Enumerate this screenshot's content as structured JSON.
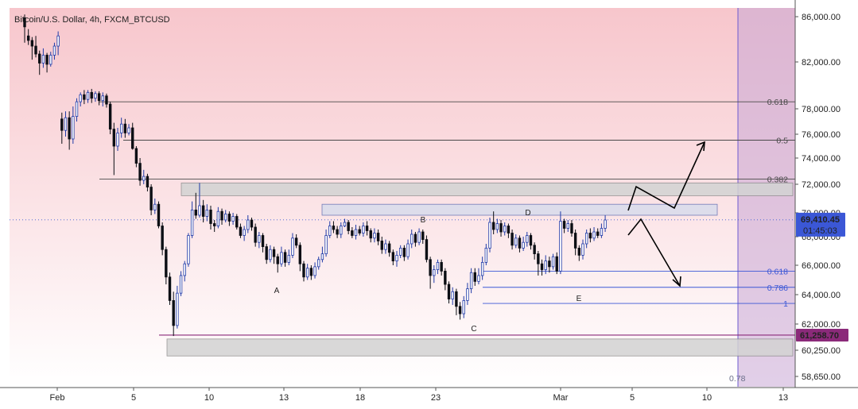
{
  "title": "Bitcoin/U.S. Dollar, 4h, FXCM_BTCUSD",
  "colors": {
    "up": "#1f3aa8",
    "down": "#0b0e14",
    "bgTop": "#f7c6cc",
    "bgBottom": "#ffffff",
    "fib": "#4a4a4a",
    "fibBlue": "#3b57d6",
    "support": "#8b2a7a",
    "current": "#3b57d6",
    "zone": "#9a9a9a",
    "band": "#c9a7d6"
  },
  "chart_data": {
    "type": "candlestick",
    "symbol": "BTCUSD",
    "timeframe": "4h",
    "ylim": [
      57800,
      87000
    ],
    "y_ticks": [
      "86,000.00",
      "82,000.00",
      "78,000.00",
      "76,000.00",
      "74,000.00",
      "72,000.00",
      "70,000.00",
      "68,000.00",
      "66,000.00",
      "64,000.00",
      "62,000.00",
      "60,250.00",
      "58,650.00"
    ],
    "x_ticks": [
      "Feb",
      "5",
      "10",
      "13",
      "18",
      "23",
      "Mar",
      "5",
      "10",
      "13"
    ],
    "x_start_date": "Feb 1",
    "candles": [
      [
        85900,
        85100,
        86200,
        83700
      ],
      [
        84300,
        83900,
        84900,
        83500
      ],
      [
        83900,
        83400,
        84200,
        82200
      ],
      [
        83400,
        82700,
        84300,
        82400
      ],
      [
        82700,
        81900,
        83000,
        80900
      ],
      [
        81900,
        82600,
        83200,
        81500
      ],
      [
        82600,
        81800,
        82800,
        81100
      ],
      [
        81800,
        82600,
        82900,
        81600
      ],
      [
        82600,
        83400,
        83700,
        82200
      ],
      [
        83400,
        84300,
        84700,
        82600
      ],
      [
        77200,
        76300,
        77700,
        75200
      ],
      [
        76300,
        77300,
        77800,
        75800
      ],
      [
        77300,
        75600,
        77800,
        74700
      ],
      [
        75600,
        77400,
        78200,
        75200
      ],
      [
        77400,
        78600,
        78900,
        77000
      ],
      [
        78600,
        79200,
        79400,
        78200
      ],
      [
        79200,
        78800,
        79600,
        78400
      ],
      [
        78800,
        79400,
        79600,
        78500
      ],
      [
        79400,
        78900,
        79700,
        78500
      ],
      [
        78900,
        79300,
        79500,
        78600
      ],
      [
        79300,
        78700,
        79500,
        78300
      ],
      [
        78700,
        79100,
        79400,
        78200
      ],
      [
        79100,
        78400,
        79300,
        78100
      ],
      [
        78400,
        76400,
        78600,
        76000
      ],
      [
        76400,
        75000,
        76900,
        72700
      ],
      [
        75000,
        76100,
        76500,
        74600
      ],
      [
        76100,
        76800,
        77300,
        75700
      ],
      [
        76800,
        76100,
        77200,
        75700
      ],
      [
        76100,
        76500,
        76800,
        75900
      ],
      [
        76500,
        74800,
        76900,
        74700
      ],
      [
        74800,
        73600,
        75000,
        73300
      ],
      [
        73600,
        72300,
        74000,
        71900
      ],
      [
        72300,
        72600,
        73100,
        72000
      ],
      [
        72600,
        71800,
        72800,
        71500
      ],
      [
        71800,
        70200,
        72000,
        69800
      ],
      [
        70200,
        70600,
        71000,
        69900
      ],
      [
        70600,
        68900,
        70800,
        68700
      ],
      [
        68900,
        67100,
        69200,
        66700
      ],
      [
        67100,
        65200,
        67300,
        64700
      ],
      [
        65200,
        63600,
        65500,
        63300
      ],
      [
        63600,
        61900,
        64200,
        61200
      ],
      [
        61900,
        64100,
        64600,
        61700
      ],
      [
        64100,
        65300,
        65600,
        63900
      ],
      [
        65300,
        66100,
        66300,
        64900
      ],
      [
        66100,
        68100,
        68300,
        65900
      ],
      [
        68100,
        70200,
        70800,
        67900
      ],
      [
        70200,
        69800,
        71400,
        69500
      ],
      [
        69800,
        70500,
        72100,
        69600
      ],
      [
        70500,
        69700,
        70900,
        69200
      ],
      [
        69700,
        70200,
        70600,
        69300
      ],
      [
        70200,
        69100,
        70500,
        68600
      ],
      [
        69100,
        68900,
        69400,
        68400
      ],
      [
        68900,
        70100,
        70400,
        68700
      ],
      [
        70100,
        69400,
        70300,
        69000
      ],
      [
        69400,
        69900,
        70200,
        69200
      ],
      [
        69900,
        69300,
        70100,
        68900
      ],
      [
        69300,
        69700,
        70000,
        69000
      ],
      [
        69700,
        68800,
        69900,
        68600
      ],
      [
        68800,
        68100,
        69100,
        67900
      ],
      [
        68100,
        68600,
        68900,
        67700
      ],
      [
        68600,
        69400,
        69800,
        68300
      ],
      [
        69400,
        68800,
        69600,
        68500
      ],
      [
        68800,
        67600,
        69100,
        67300
      ],
      [
        67600,
        68100,
        68400,
        67200
      ],
      [
        68100,
        67300,
        68300,
        66900
      ],
      [
        67300,
        66400,
        67500,
        66100
      ],
      [
        66400,
        67100,
        67400,
        66200
      ],
      [
        67100,
        66600,
        67300,
        66100
      ],
      [
        66600,
        66100,
        66800,
        65500
      ],
      [
        66100,
        66900,
        67300,
        65900
      ],
      [
        66900,
        66200,
        67100,
        65900
      ],
      [
        66200,
        66700,
        67100,
        66000
      ],
      [
        66700,
        67900,
        68300,
        66500
      ],
      [
        67900,
        67400,
        68200,
        67200
      ],
      [
        67400,
        66100,
        67600,
        65600
      ],
      [
        66100,
        65200,
        66300,
        64900
      ],
      [
        65200,
        65800,
        66100,
        65000
      ],
      [
        65800,
        65300,
        66000,
        65000
      ],
      [
        65300,
        65900,
        66200,
        65100
      ],
      [
        65900,
        66400,
        66600,
        65700
      ],
      [
        66400,
        66800,
        67300,
        66200
      ],
      [
        66800,
        68100,
        68600,
        66600
      ],
      [
        68100,
        68900,
        69300,
        67900
      ],
      [
        68900,
        68600,
        69300,
        68300
      ],
      [
        68600,
        68200,
        68900,
        67900
      ],
      [
        68200,
        68900,
        69200,
        67900
      ],
      [
        68900,
        69200,
        69500,
        68800
      ],
      [
        69200,
        68500,
        69400,
        68200
      ],
      [
        68500,
        68100,
        68800,
        67900
      ],
      [
        68100,
        68600,
        69000,
        67800
      ],
      [
        68600,
        68300,
        68900,
        68100
      ],
      [
        68300,
        68900,
        69200,
        68000
      ],
      [
        68900,
        68500,
        69300,
        68100
      ],
      [
        68500,
        67900,
        68700,
        67600
      ],
      [
        67900,
        68300,
        68700,
        67600
      ],
      [
        68300,
        67700,
        68600,
        67400
      ],
      [
        67700,
        67100,
        68000,
        66800
      ],
      [
        67100,
        67500,
        67800,
        66800
      ],
      [
        67500,
        66900,
        67700,
        66600
      ],
      [
        66900,
        66300,
        67100,
        66000
      ],
      [
        66300,
        66700,
        67000,
        65900
      ],
      [
        66700,
        67200,
        67400,
        66500
      ],
      [
        67200,
        66600,
        67400,
        66300
      ],
      [
        66600,
        67500,
        67800,
        66400
      ],
      [
        67500,
        68200,
        68600,
        67200
      ],
      [
        68200,
        67600,
        68400,
        67300
      ],
      [
        67600,
        68400,
        68700,
        67400
      ],
      [
        68400,
        67800,
        68600,
        67500
      ],
      [
        67800,
        66400,
        68100,
        66200
      ],
      [
        66400,
        65300,
        66600,
        64400
      ],
      [
        65300,
        65700,
        66000,
        64800
      ],
      [
        65700,
        66200,
        66400,
        65400
      ],
      [
        66200,
        65600,
        66400,
        65300
      ],
      [
        65600,
        64700,
        65800,
        64300
      ],
      [
        64700,
        63700,
        64900,
        63400
      ],
      [
        63700,
        64200,
        64500,
        63300
      ],
      [
        64200,
        63200,
        64400,
        62600
      ],
      [
        63200,
        62700,
        63500,
        62300
      ],
      [
        62700,
        63600,
        63900,
        62400
      ],
      [
        63600,
        64400,
        64800,
        63300
      ],
      [
        64400,
        65500,
        65800,
        64100
      ],
      [
        65500,
        64900,
        65800,
        64600
      ],
      [
        64900,
        65300,
        65800,
        64700
      ],
      [
        65300,
        66200,
        66600,
        65000
      ],
      [
        66200,
        67200,
        67500,
        66000
      ],
      [
        67200,
        69200,
        69600,
        66900
      ],
      [
        69200,
        68600,
        70100,
        68200
      ],
      [
        68600,
        69100,
        69500,
        68300
      ],
      [
        69100,
        68400,
        69400,
        68000
      ],
      [
        68400,
        68900,
        69200,
        68100
      ],
      [
        68900,
        68300,
        69100,
        67900
      ],
      [
        68300,
        67400,
        68600,
        67100
      ],
      [
        67400,
        67900,
        68200,
        67200
      ],
      [
        67900,
        67200,
        68100,
        66900
      ],
      [
        67200,
        67600,
        68000,
        67000
      ],
      [
        67600,
        68100,
        68400,
        67300
      ],
      [
        68100,
        67400,
        68300,
        67100
      ],
      [
        67400,
        66800,
        67600,
        66400
      ],
      [
        66800,
        66100,
        67000,
        65300
      ],
      [
        66100,
        65700,
        66400,
        65300
      ],
      [
        65700,
        66300,
        66700,
        65400
      ],
      [
        66300,
        65900,
        66600,
        65500
      ],
      [
        65900,
        66600,
        66800,
        65700
      ],
      [
        66600,
        65600,
        66900,
        65400
      ],
      [
        65600,
        69300,
        70100,
        65400
      ],
      [
        69300,
        68700,
        69500,
        68300
      ],
      [
        68700,
        69100,
        69400,
        68400
      ],
      [
        69100,
        68300,
        69400,
        68000
      ],
      [
        68300,
        67200,
        68600,
        66700
      ],
      [
        67200,
        66700,
        67400,
        66300
      ],
      [
        66700,
        67500,
        67800,
        66400
      ],
      [
        67500,
        68300,
        68600,
        67200
      ],
      [
        68300,
        67900,
        68700,
        67600
      ],
      [
        67900,
        68400,
        68800,
        67700
      ],
      [
        68400,
        68100,
        68700,
        67900
      ],
      [
        68100,
        68700,
        69100,
        67900
      ],
      [
        68700,
        69400,
        69800,
        68400
      ]
    ],
    "levels": [
      {
        "label": "0.618",
        "value": 78600,
        "kind": "fib"
      },
      {
        "label": "0.5",
        "value": 75500,
        "kind": "fib"
      },
      {
        "label": "0.382",
        "value": 72400,
        "kind": "fib"
      },
      {
        "label": "0.618",
        "value": 65600,
        "kind": "fibBlue"
      },
      {
        "label": "0.786",
        "value": 64500,
        "kind": "fibBlue"
      },
      {
        "label": "1",
        "value": 63400,
        "kind": "fibBlue"
      }
    ],
    "zones": [
      {
        "from": 71200,
        "to": 72100
      },
      {
        "from": 69800,
        "to": 70600
      },
      {
        "from": 59900,
        "to": 61000
      }
    ],
    "points": [
      {
        "label": "A",
        "x": "Feb 13",
        "y": 65100
      },
      {
        "label": "B",
        "x": "Feb 20",
        "y": 69700
      },
      {
        "label": "C",
        "x": "Feb 25",
        "y": 62500
      },
      {
        "label": "D",
        "x": "Mar 1",
        "y": 70300
      },
      {
        "label": "E",
        "x": "Mar 3",
        "y": 63900
      }
    ],
    "current_price": "69,410.45",
    "countdown": "01:45:03",
    "support_price": "61,258.70",
    "band_label": "0.78"
  }
}
